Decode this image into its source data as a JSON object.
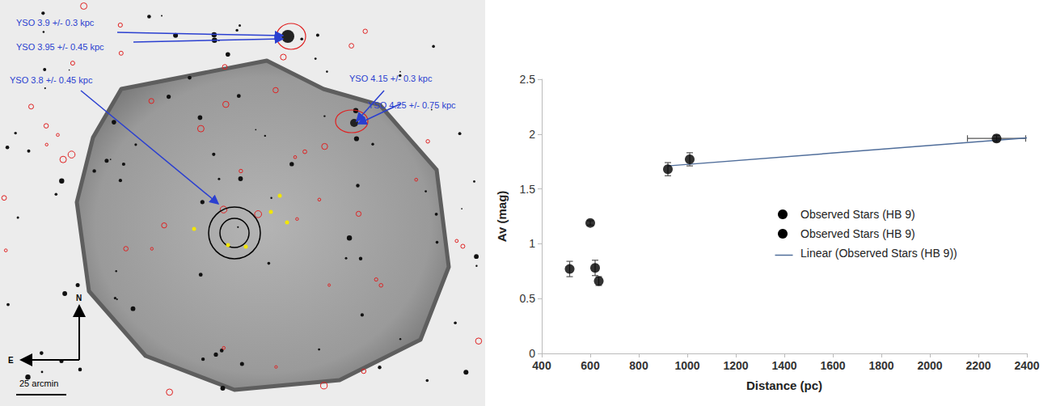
{
  "image_panel": {
    "annotations": [
      "YSO 3.9 +/- 0.3 kpc",
      "YSO 3.95 +/- 0.45 kpc",
      "YSO 3.8 +/- 0.45 kpc",
      "YSO 4.15 +/- 0.3 kpc",
      "YSO 4.25 +/- 0.75 kpc"
    ],
    "compass": {
      "north": "N",
      "east": "E"
    },
    "scale_bar": "25 arcmin"
  },
  "chart_data": {
    "type": "scatter",
    "x_label": "Distance (pc)",
    "y_label": "Av (mag)",
    "xlim": [
      400,
      2400
    ],
    "xticks": [
      400,
      600,
      800,
      1000,
      1200,
      1400,
      1600,
      1800,
      2000,
      2200,
      2400
    ],
    "ylim": [
      0,
      2.5
    ],
    "yticks": [
      0,
      0.5,
      1,
      1.5,
      2,
      2.5
    ],
    "grid": false,
    "legend": "right",
    "series": [
      {
        "name": "Observed Stars (HB 9)",
        "type": "scatter",
        "color": "#000000",
        "marker": "circle",
        "x": [
          515,
          600,
          620,
          635,
          920,
          1010
        ],
        "values": [
          0.77,
          1.19,
          0.78,
          0.66,
          1.68,
          1.77
        ],
        "y_err": [
          0.07,
          0.02,
          0.07,
          0.04,
          0.06,
          0.06
        ]
      },
      {
        "name": "Observed Stars (HB 9)",
        "type": "scatter",
        "color": "#000000",
        "marker": "circle",
        "x": [
          2275
        ],
        "values": [
          1.96
        ],
        "y_err": [
          0.03
        ],
        "x_err": [
          120
        ]
      },
      {
        "name": "Linear (Observed Stars (HB 9))",
        "type": "line",
        "color": "#4f6d9a",
        "line_style": "solid",
        "x": [
          920,
          2400
        ],
        "values": [
          1.71,
          1.965
        ]
      }
    ]
  }
}
